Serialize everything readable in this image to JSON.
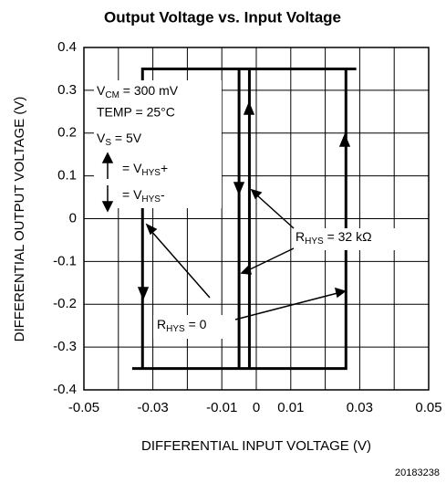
{
  "chart_data": {
    "type": "line",
    "title": "Output Voltage vs. Input Voltage",
    "x_label": "DIFFERENTIAL INPUT VOLTAGE (V)",
    "y_label": "DIFFERENTIAL OUTPUT VOLTAGE (V)",
    "xlim": [
      -0.05,
      0.05
    ],
    "xticks": [
      -0.05,
      -0.03,
      -0.01,
      0,
      0.01,
      0.03,
      0.05
    ],
    "xminor": [
      -0.04,
      -0.02,
      0.02,
      0.04
    ],
    "ylim": [
      -0.4,
      0.4
    ],
    "yticks": [
      -0.4,
      -0.3,
      -0.2,
      -0.1,
      0,
      0.1,
      0.2,
      0.3,
      0.4
    ],
    "grid": true,
    "series": [
      {
        "color": "#000",
        "x": [
          -0.036,
          0.026,
          0.026,
          null,
          0.029,
          -0.033,
          -0.033
        ],
        "values": [
          -0.35,
          -0.35,
          0.35,
          null,
          0.35,
          0.35,
          -0.35
        ]
      },
      {
        "color": "#000",
        "x": [
          -0.005,
          -0.005,
          null,
          -0.002,
          -0.002
        ],
        "values": [
          0.35,
          -0.35,
          null,
          -0.35,
          0.35
        ]
      }
    ],
    "annotations": {
      "vcm": [
        "V",
        "CM",
        " = 300 mV"
      ],
      "temp": "TEMP = 25°C",
      "vs": [
        "V",
        "S",
        " = 5V"
      ],
      "hysp": [
        "= V",
        "HYS",
        "+"
      ],
      "hysm": [
        "= V",
        "HYS",
        "-"
      ],
      "r32": [
        "R",
        "HYS",
        " = 32 kΩ"
      ],
      "r0": [
        "R",
        "HYS",
        " = 0"
      ]
    },
    "footer": "20183238"
  }
}
